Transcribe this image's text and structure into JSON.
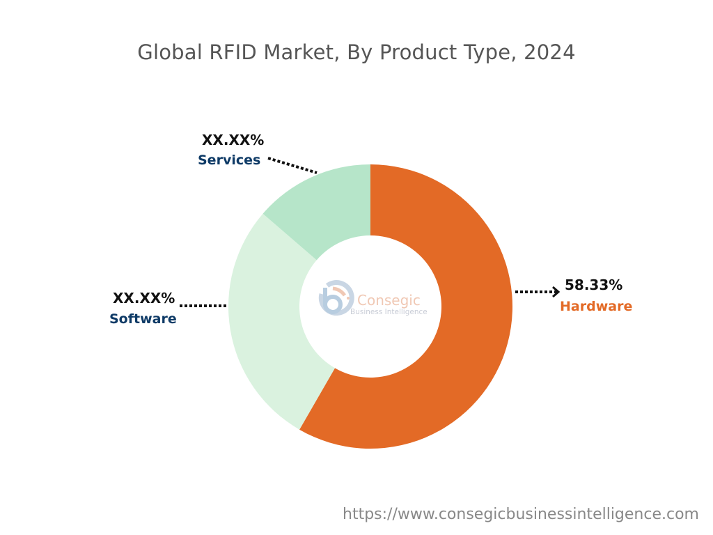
{
  "chart_data": {
    "type": "pie",
    "variant": "donut",
    "title": "Global RFID Market, By Product Type, 2024",
    "slices": [
      {
        "name": "Hardware",
        "label": "58.33%",
        "value": 58.33,
        "color": "#E36A26",
        "label_color": "#E36A26"
      },
      {
        "name": "Software",
        "label": "XX.XX%",
        "value": 28.0,
        "color": "#DAF2DF",
        "label_color": "#0E3A66"
      },
      {
        "name": "Services",
        "label": "XX.XX%",
        "value": 13.67,
        "color": "#B6E5C9",
        "label_color": "#0E3A66"
      }
    ],
    "start": "top, clockwise"
  },
  "watermark": {
    "line1": "Consegic",
    "line2": "Business Intelligence"
  },
  "footer": {
    "url": "https://www.consegicbusinessintelligence.com"
  }
}
